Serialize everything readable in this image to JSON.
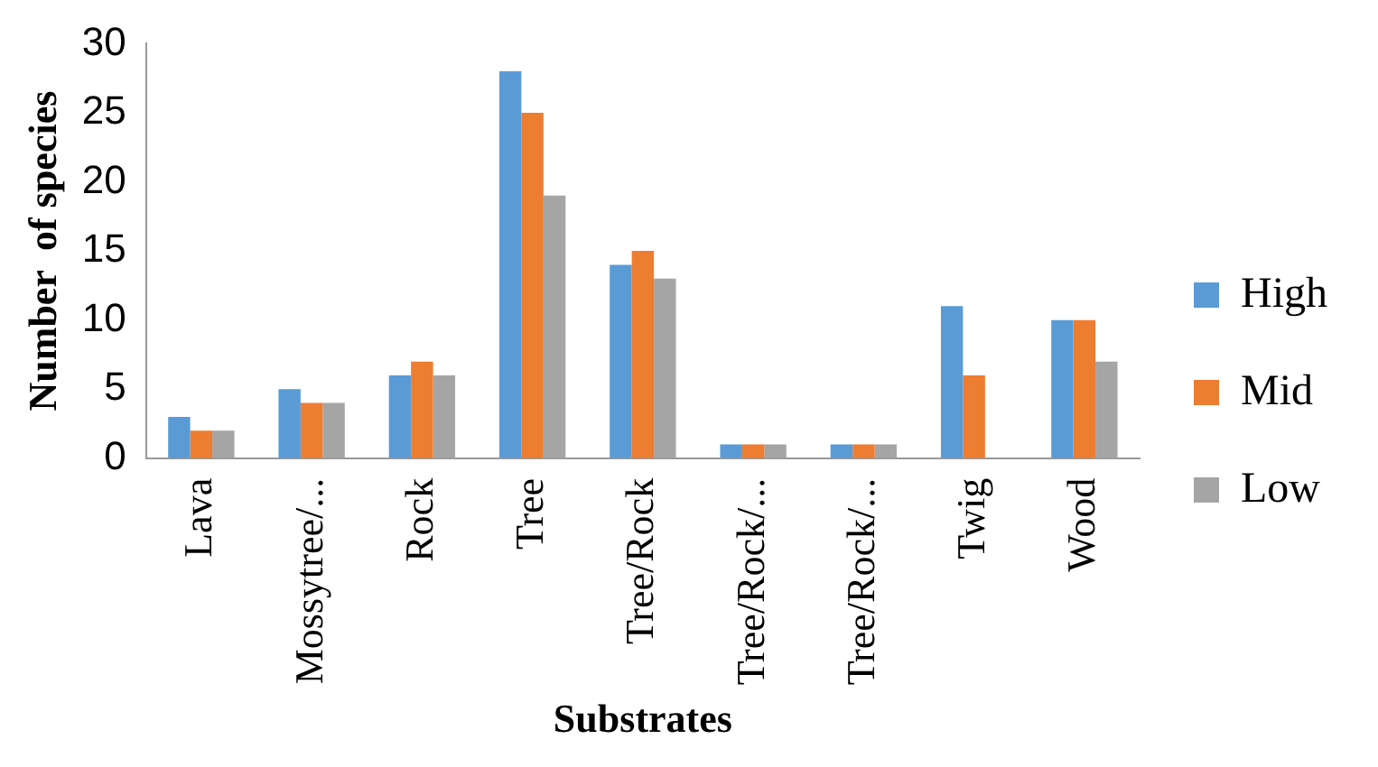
{
  "chart_data": {
    "type": "bar",
    "xlabel": "Substrates",
    "ylabel": "Number  of species",
    "categories": [
      "Lava",
      "Mossytree/...",
      "Rock",
      "Tree",
      "Tree/Rock",
      "Tree/Rock/...",
      "Tree/Rock/...",
      "Twig",
      "Wood"
    ],
    "series": [
      {
        "name": "High",
        "color": "#5b9bd5",
        "values": [
          3,
          5,
          6,
          28,
          14,
          1,
          1,
          11,
          10
        ]
      },
      {
        "name": "Mid",
        "color": "#ed7d31",
        "values": [
          2,
          4,
          7,
          25,
          15,
          1,
          1,
          6,
          10
        ]
      },
      {
        "name": "Low",
        "color": "#a5a5a5",
        "values": [
          2,
          4,
          6,
          19,
          13,
          1,
          1,
          0,
          7
        ]
      }
    ],
    "ylim": [
      0,
      30
    ],
    "yticks": [
      0,
      5,
      10,
      15,
      20,
      25,
      30
    ],
    "grid": false,
    "legend": "right"
  }
}
